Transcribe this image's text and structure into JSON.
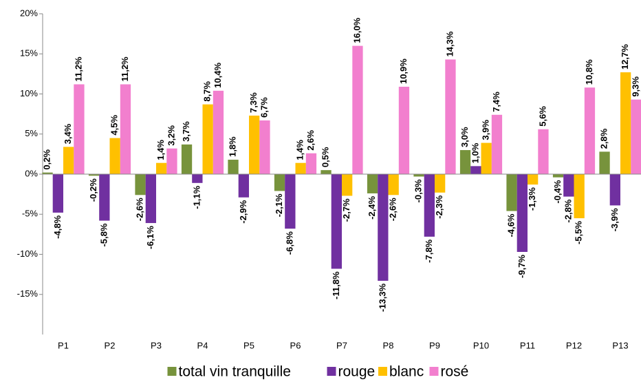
{
  "chart_data": {
    "type": "bar",
    "categories": [
      "P1",
      "P2",
      "P3",
      "P4",
      "P5",
      "P6",
      "P7",
      "P8",
      "P9",
      "P10",
      "P11",
      "P12",
      "P13"
    ],
    "series": [
      {
        "name": "total vin tranquille",
        "color": "#77933c",
        "label_color": "#77933c",
        "values": [
          0.2,
          -0.2,
          -2.6,
          3.7,
          1.8,
          -2.1,
          0.5,
          -2.4,
          -0.3,
          3.0,
          -4.6,
          -0.4,
          2.8
        ],
        "value_labels": [
          "0,2%",
          "-0,2%",
          "-2,6%",
          "3,7%",
          "1,8%",
          "-2,1%",
          "0,5%",
          "-2,4%",
          "-0,3%",
          "3,0%",
          "-4,6%",
          "-0,4%",
          "2,8%"
        ]
      },
      {
        "name": "rouge",
        "color": "#7030a0",
        "label_color": "#7030a0",
        "values": [
          -4.8,
          -5.8,
          -6.1,
          -1.1,
          -2.9,
          -6.8,
          -11.8,
          -13.3,
          -7.8,
          1.0,
          -9.7,
          -2.8,
          -3.9
        ],
        "value_labels": [
          "-4,8%",
          "-5,8%",
          "-6,1%",
          "-1,1%",
          "-2,9%",
          "-6,8%",
          "-11,8%",
          "-13,3%",
          "-7,8%",
          "1,0%",
          "-9,7%",
          "-2,8%",
          "-3,9%"
        ]
      },
      {
        "name": "blanc",
        "color": "#ffc000",
        "label_color": "#e46c0a",
        "values": [
          3.4,
          4.5,
          1.4,
          8.7,
          7.3,
          1.4,
          -2.7,
          -2.6,
          -2.3,
          3.9,
          -1.3,
          -5.5,
          12.7
        ],
        "value_labels": [
          "3,4%",
          "4,5%",
          "1,4%",
          "8,7%",
          "7,3%",
          "1,4%",
          "-2,7%",
          "-2,6%",
          "-2,3%",
          "3,9%",
          "-1,3%",
          "-5,5%",
          "12,7%"
        ]
      },
      {
        "name": "rosé",
        "color": "#f27fce",
        "label_color": "#e0219f",
        "values": [
          11.2,
          11.2,
          3.2,
          10.4,
          6.7,
          2.6,
          16.0,
          10.9,
          14.3,
          7.4,
          5.6,
          10.8,
          9.3
        ],
        "value_labels": [
          "11,2%",
          "11,2%",
          "3,2%",
          "10,4%",
          "6,7%",
          "2,6%",
          "16,0%",
          "10,9%",
          "14,3%",
          "7,4%",
          "5,6%",
          "10,8%",
          "9,3%"
        ]
      }
    ],
    "ylim": [
      -20,
      20
    ],
    "yticks": [
      {
        "value": 20,
        "label": "20%"
      },
      {
        "value": 15,
        "label": "15%"
      },
      {
        "value": 10,
        "label": "10%"
      },
      {
        "value": 5,
        "label": "5%"
      },
      {
        "value": 0,
        "label": "0%"
      },
      {
        "value": -5,
        "label": "-5%"
      },
      {
        "value": -10,
        "label": "-10%"
      },
      {
        "value": -15,
        "label": "-15%"
      }
    ],
    "legend": "bottom"
  }
}
